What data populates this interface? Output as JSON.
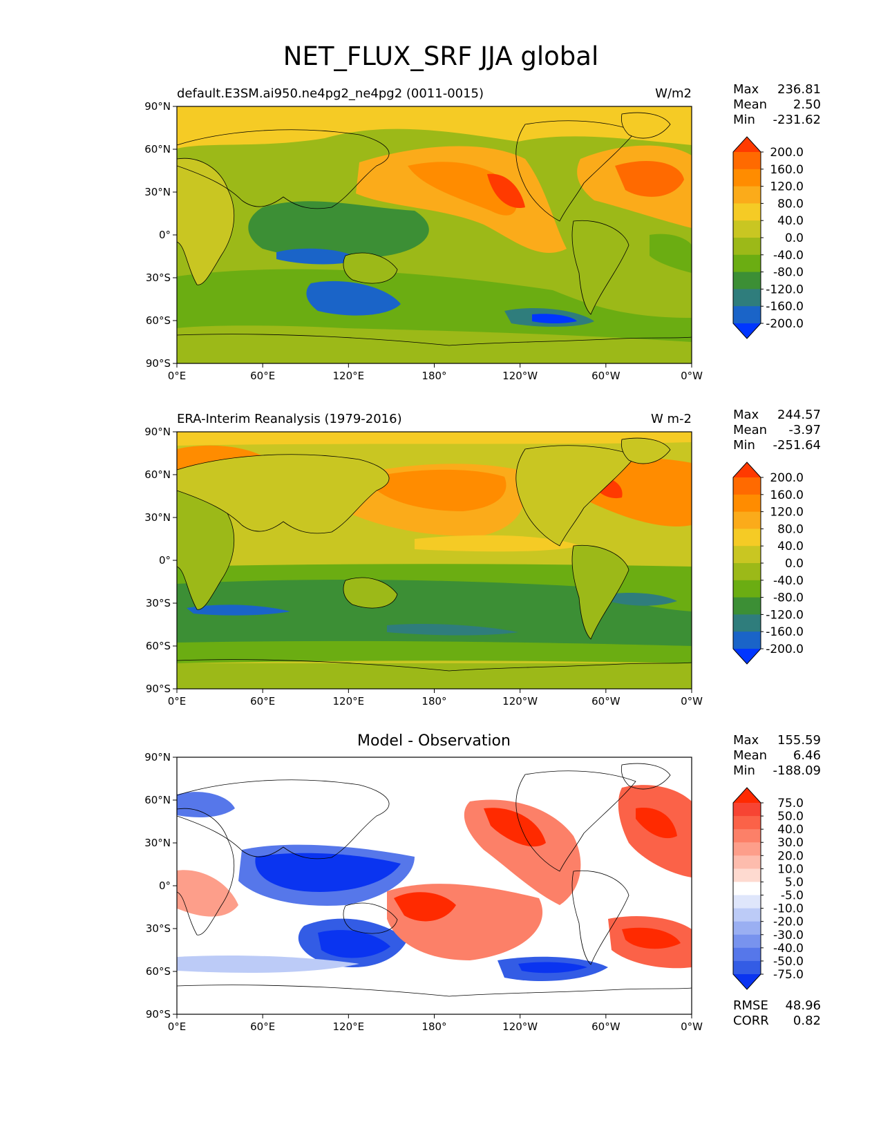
{
  "figure_title": "NET_FLUX_SRF JJA global",
  "colors": {
    "plot_bg": "#9cb918",
    "plot_bg_diff": "#ffffff",
    "coast": "#000000"
  },
  "chart_data": [
    {
      "type": "heatmap",
      "title": "default.E3SM.ai950.ne4pg2_ne4pg2 (0011-0015)",
      "units": "W/m2",
      "stats": {
        "max_label": "Max",
        "max": "236.81",
        "mean_label": "Mean",
        "mean": "2.50",
        "min_label": "Min",
        "min": "-231.62"
      },
      "x_ticks": [
        "0°E",
        "60°E",
        "120°E",
        "180°",
        "120°W",
        "60°W",
        "0°W"
      ],
      "y_ticks": [
        "90°N",
        "60°N",
        "30°N",
        "0°",
        "30°S",
        "60°S",
        "90°S"
      ],
      "xlim": [
        0,
        360
      ],
      "ylim": [
        -90,
        90
      ],
      "colorbar_labels": [
        "200.0",
        "160.0",
        "120.0",
        "80.0",
        "40.0",
        "0.0",
        "-40.0",
        "-80.0",
        "-120.0",
        "-160.0",
        "-200.0"
      ],
      "colorbar_colors": [
        "#ff3a00",
        "#ff6a00",
        "#ff8c00",
        "#fbab1a",
        "#f5cb25",
        "#c9c622",
        "#9cb918",
        "#6bad12",
        "#3c8f35",
        "#2f7d7c",
        "#1a64c8",
        "#0036ff"
      ]
    },
    {
      "type": "heatmap",
      "title": "ERA-Interim Reanalysis (1979-2016)",
      "units": "W m-2",
      "stats": {
        "max_label": "Max",
        "max": "244.57",
        "mean_label": "Mean",
        "mean": "-3.97",
        "min_label": "Min",
        "min": "-251.64"
      },
      "x_ticks": [
        "0°E",
        "60°E",
        "120°E",
        "180°",
        "120°W",
        "60°W",
        "0°W"
      ],
      "y_ticks": [
        "90°N",
        "60°N",
        "30°N",
        "0°",
        "30°S",
        "60°S",
        "90°S"
      ],
      "xlim": [
        0,
        360
      ],
      "ylim": [
        -90,
        90
      ],
      "colorbar_labels": [
        "200.0",
        "160.0",
        "120.0",
        "80.0",
        "40.0",
        "0.0",
        "-40.0",
        "-80.0",
        "-120.0",
        "-160.0",
        "-200.0"
      ],
      "colorbar_colors": [
        "#ff3a00",
        "#ff6a00",
        "#ff8c00",
        "#fbab1a",
        "#f5cb25",
        "#c9c622",
        "#9cb918",
        "#6bad12",
        "#3c8f35",
        "#2f7d7c",
        "#1a64c8",
        "#0036ff"
      ]
    },
    {
      "type": "heatmap",
      "title": "Model - Observation",
      "units": "",
      "stats": {
        "max_label": "Max",
        "max": "155.59",
        "mean_label": "Mean",
        "mean": "6.46",
        "min_label": "Min",
        "min": "-188.09"
      },
      "extra": {
        "rmse_label": "RMSE",
        "rmse": "48.96",
        "corr_label": "CORR",
        "corr": "0.82"
      },
      "x_ticks": [
        "0°E",
        "60°E",
        "120°E",
        "180°",
        "120°W",
        "60°W",
        "0°W"
      ],
      "y_ticks": [
        "90°N",
        "60°N",
        "30°N",
        "0°",
        "30°S",
        "60°S",
        "90°S"
      ],
      "xlim": [
        0,
        360
      ],
      "ylim": [
        -90,
        90
      ],
      "colorbar_labels": [
        "75.0",
        "50.0",
        "40.0",
        "30.0",
        "20.0",
        "10.0",
        "5.0",
        "-5.0",
        "-10.0",
        "-20.0",
        "-30.0",
        "-40.0",
        "-50.0",
        "-75.0"
      ],
      "colorbar_colors": [
        "#ff2a00",
        "#f74433",
        "#fb6248",
        "#fc8068",
        "#fd9e8a",
        "#fdbcad",
        "#fedad0",
        "#ffffff",
        "#dfe6fb",
        "#bccbf7",
        "#9aaff2",
        "#7893ee",
        "#5677ea",
        "#335ce5",
        "#0a34f0"
      ]
    }
  ]
}
